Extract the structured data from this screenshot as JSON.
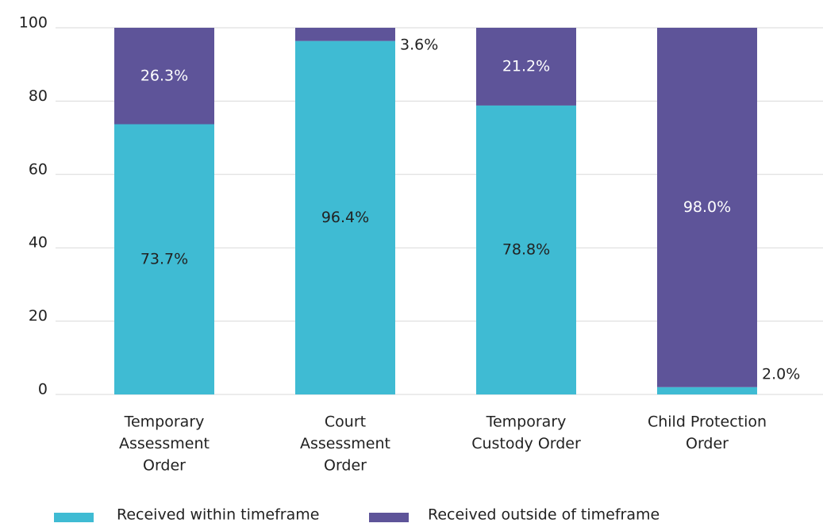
{
  "chart_data": {
    "type": "stacked_bar",
    "categories": [
      [
        "Temporary",
        "Assessment",
        "Order"
      ],
      [
        "Court",
        "Assessment",
        "Order"
      ],
      [
        "Temporary",
        "Custody Order"
      ],
      [
        "Child Protection",
        "Order"
      ]
    ],
    "series": [
      {
        "name": "Received within timeframe",
        "color": "#3fbbd3",
        "values": [
          73.7,
          96.4,
          78.8,
          2.0
        ],
        "value_labels": [
          "73.7%",
          "96.4%",
          "78.8%",
          "2.0%"
        ]
      },
      {
        "name": "Received outside of timeframe",
        "color": "#5e5499",
        "values": [
          26.3,
          3.6,
          21.2,
          98.0
        ],
        "value_labels": [
          "26.3%",
          "3.6%",
          "21.2%",
          "98.0%"
        ]
      }
    ],
    "ylim": [
      0,
      100
    ],
    "yticks": [
      0,
      20,
      40,
      60,
      80,
      100
    ],
    "grid": true,
    "legend": "bottom"
  }
}
